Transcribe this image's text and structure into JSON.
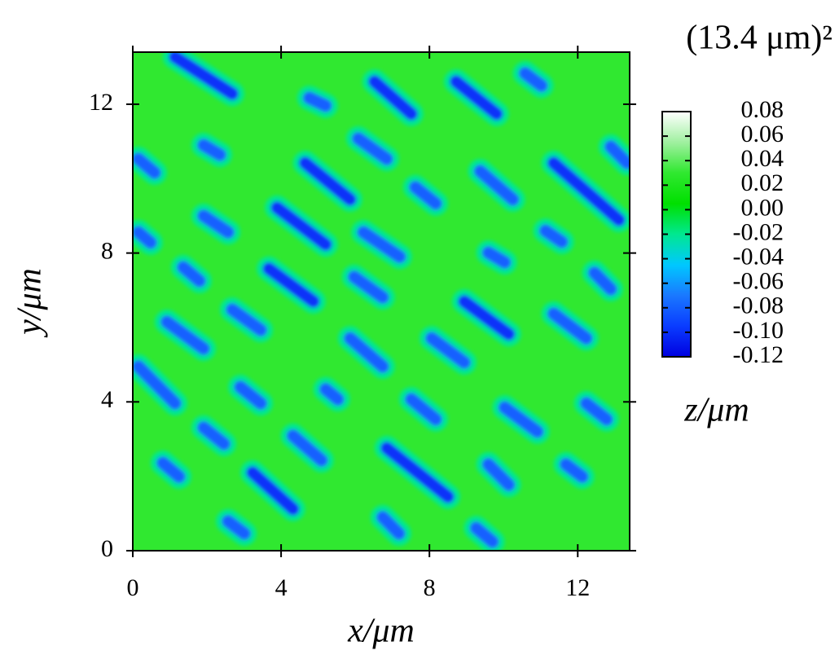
{
  "chart_data": {
    "type": "heatmap",
    "title": "(13.4 μm)²",
    "x_label": "x/μm",
    "y_label": "y/μm",
    "colorbar_label": "z/μm",
    "xlim": [
      0,
      13.4
    ],
    "ylim": [
      0,
      13.4
    ],
    "xticks": [
      0,
      4,
      8,
      12
    ],
    "yticks": [
      0,
      4,
      8,
      12
    ],
    "zlim": [
      -0.12,
      0.08
    ],
    "zticks": [
      0.08,
      0.06,
      0.04,
      0.02,
      {
        "value": 0,
        "label": "0.00"
      },
      -0.02,
      -0.04,
      -0.06,
      -0.08,
      {
        "value": -0.1,
        "label": "-0.10"
      },
      -0.12
    ],
    "colormap": [
      "#0000e0",
      "#0a3cff",
      "#1a78ff",
      "#00c8ff",
      "#00e890",
      "#00e000",
      "#30e830",
      "#a0f0a0",
      "#ffffff"
    ],
    "z_background": 0.03,
    "pits": [
      [
        1.14,
        13.27,
        2.68,
        12.28,
        -0.1
      ],
      [
        4.76,
        12.17,
        5.2,
        11.96,
        -0.08
      ],
      [
        6.52,
        12.61,
        7.51,
        11.74,
        -0.1
      ],
      [
        8.72,
        12.61,
        9.81,
        11.74,
        -0.1
      ],
      [
        10.58,
        12.83,
        11.02,
        12.5,
        -0.08
      ],
      [
        0.15,
        10.53,
        0.59,
        10.16,
        -0.08
      ],
      [
        1.91,
        10.9,
        2.35,
        10.64,
        -0.08
      ],
      [
        6.08,
        11.08,
        6.85,
        10.53,
        -0.08
      ],
      [
        4.65,
        10.42,
        5.86,
        9.44,
        -0.1
      ],
      [
        7.62,
        9.77,
        8.17,
        9.33,
        -0.08
      ],
      [
        9.37,
        10.2,
        10.25,
        9.44,
        -0.08
      ],
      [
        11.35,
        10.42,
        13.11,
        8.89,
        -0.1
      ],
      [
        12.89,
        10.86,
        13.33,
        10.42,
        -0.08
      ],
      [
        1.91,
        9.0,
        2.57,
        8.56,
        -0.08
      ],
      [
        3.89,
        9.22,
        5.2,
        8.23,
        -0.1
      ],
      [
        6.22,
        8.56,
        7.2,
        7.9,
        -0.08
      ],
      [
        9.59,
        8.01,
        10.03,
        7.75,
        -0.08
      ],
      [
        11.13,
        8.6,
        11.57,
        8.3,
        -0.08
      ],
      [
        0.15,
        8.56,
        0.48,
        8.28,
        -0.08
      ],
      [
        1.36,
        7.62,
        1.8,
        7.25,
        -0.08
      ],
      [
        3.67,
        7.58,
        4.87,
        6.7,
        -0.1
      ],
      [
        5.97,
        7.36,
        6.74,
        6.81,
        -0.08
      ],
      [
        8.94,
        6.7,
        10.14,
        5.82,
        -0.1
      ],
      [
        12.45,
        7.47,
        12.89,
        7.03,
        -0.08
      ],
      [
        0.92,
        6.15,
        1.91,
        5.43,
        -0.08
      ],
      [
        2.68,
        6.48,
        3.45,
        5.93,
        -0.08
      ],
      [
        5.86,
        5.71,
        6.74,
        4.95,
        -0.08
      ],
      [
        8.06,
        5.71,
        8.94,
        5.06,
        -0.08
      ],
      [
        11.35,
        6.37,
        12.23,
        5.71,
        -0.08
      ],
      [
        0.15,
        4.95,
        1.14,
        3.96,
        -0.08
      ],
      [
        2.9,
        4.4,
        3.45,
        3.96,
        -0.08
      ],
      [
        5.2,
        4.34,
        5.53,
        4.07,
        -0.08
      ],
      [
        7.51,
        4.07,
        8.17,
        3.53,
        -0.08
      ],
      [
        10.03,
        3.85,
        10.91,
        3.2,
        -0.08
      ],
      [
        12.23,
        3.96,
        12.78,
        3.53,
        -0.08
      ],
      [
        1.91,
        3.31,
        2.46,
        2.87,
        -0.08
      ],
      [
        4.32,
        3.09,
        5.09,
        2.43,
        -0.08
      ],
      [
        6.85,
        2.76,
        8.5,
        1.45,
        -0.1
      ],
      [
        0.81,
        2.36,
        1.25,
        1.99,
        -0.08
      ],
      [
        3.23,
        2.1,
        4.32,
        1.12,
        -0.1
      ],
      [
        9.59,
        2.32,
        10.14,
        1.77,
        -0.08
      ],
      [
        11.68,
        2.32,
        12.12,
        1.99,
        -0.08
      ],
      [
        2.57,
        0.79,
        3.01,
        0.46,
        -0.08
      ],
      [
        6.74,
        0.9,
        7.18,
        0.46,
        -0.08
      ],
      [
        9.26,
        0.61,
        9.7,
        0.24,
        -0.08
      ]
    ]
  }
}
